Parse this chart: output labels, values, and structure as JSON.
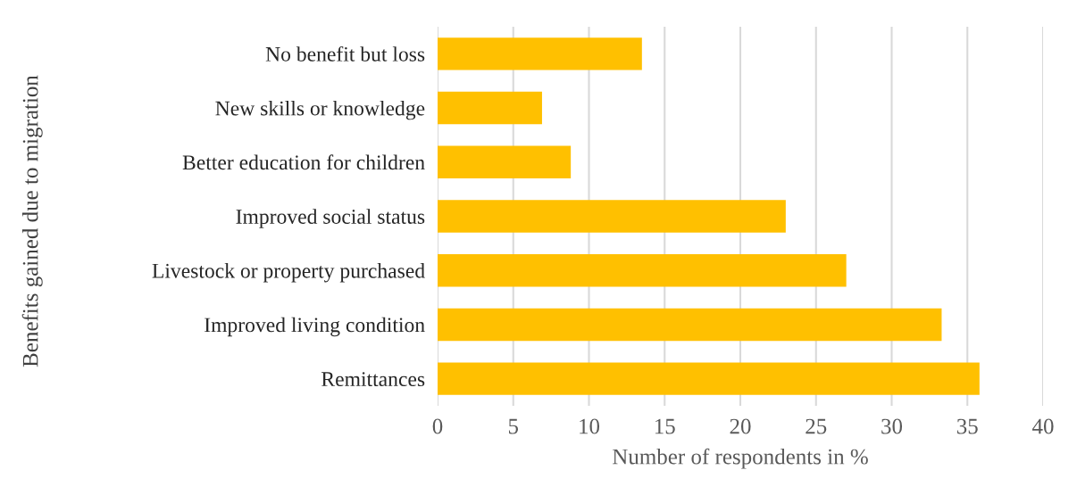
{
  "chart_data": {
    "type": "bar",
    "orientation": "horizontal",
    "categories": [
      "No benefit but loss",
      "New skills or knowledge",
      "Better education for children",
      "Improved social status",
      "Livestock or property purchased",
      "Improved living condition",
      "Remittances"
    ],
    "values": [
      13.5,
      6.9,
      8.8,
      23.0,
      27.0,
      33.3,
      35.8
    ],
    "color": "#ffc000",
    "xlim": [
      0,
      40
    ],
    "xticks": [
      0,
      5,
      10,
      15,
      20,
      25,
      30,
      35,
      40
    ],
    "xlabel": "Number of respondents in %",
    "ylabel": "Benefits gained due to migration",
    "grid": "x"
  }
}
